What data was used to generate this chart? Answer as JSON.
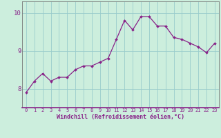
{
  "x": [
    0,
    1,
    2,
    3,
    4,
    5,
    6,
    7,
    8,
    9,
    10,
    11,
    12,
    13,
    14,
    15,
    16,
    17,
    18,
    19,
    20,
    21,
    22,
    23
  ],
  "y": [
    7.9,
    8.2,
    8.4,
    8.2,
    8.3,
    8.3,
    8.5,
    8.6,
    8.6,
    8.7,
    8.8,
    9.3,
    9.8,
    9.55,
    9.9,
    9.9,
    9.65,
    9.65,
    9.35,
    9.3,
    9.2,
    9.1,
    8.95,
    9.2
  ],
  "line_color": "#882288",
  "marker_color": "#882288",
  "bg_color": "#cceedd",
  "grid_color": "#99cccc",
  "xlabel": "Windchill (Refroidissement éolien,°C)",
  "xlabel_color": "#882288",
  "ylabel_ticks": [
    8,
    9,
    10
  ],
  "xtick_labels": [
    "0",
    "1",
    "2",
    "3",
    "4",
    "5",
    "6",
    "7",
    "8",
    "9",
    "10",
    "11",
    "12",
    "13",
    "14",
    "15",
    "16",
    "17",
    "18",
    "19",
    "20",
    "21",
    "22",
    "23"
  ],
  "ylim": [
    7.5,
    10.3
  ],
  "xlim": [
    -0.5,
    23.5
  ],
  "tick_color": "#882288",
  "axis_color": "#777777",
  "figsize": [
    3.2,
    2.0
  ],
  "dpi": 100
}
